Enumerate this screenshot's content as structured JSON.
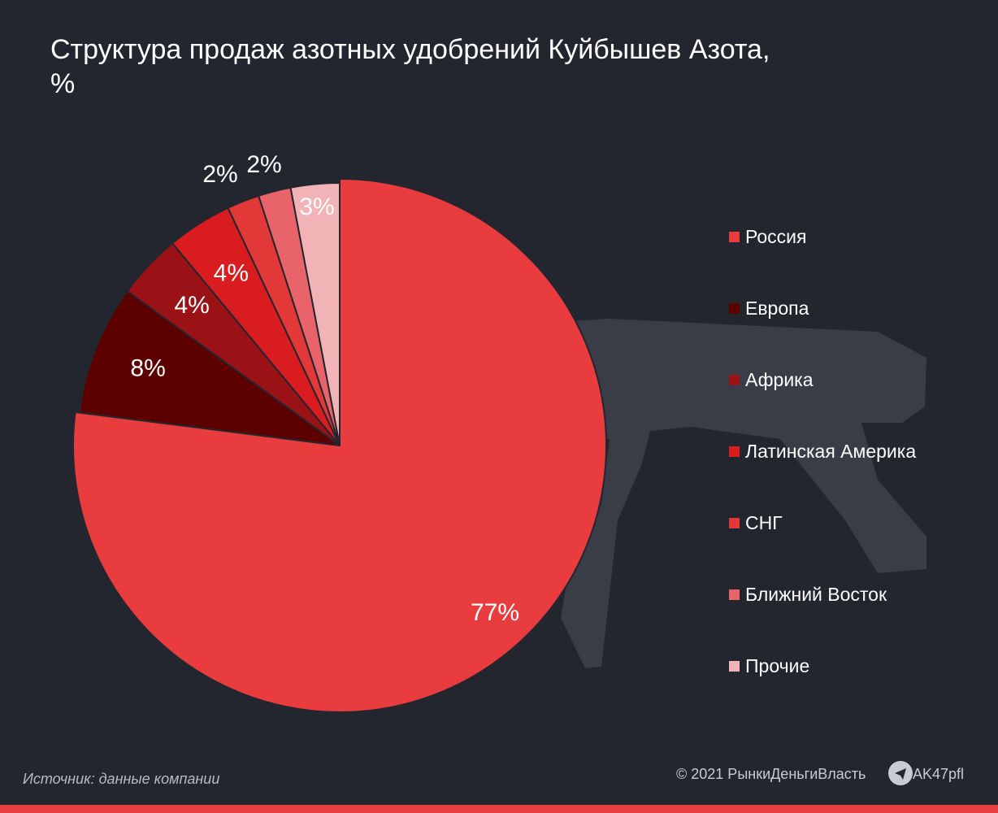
{
  "title": "Структура продаж азотных удобрений Куйбышев Азота, %",
  "chart_data": {
    "type": "pie",
    "title": "Структура продаж азотных удобрений Куйбышев Азота, %",
    "unit": "%",
    "start_angle": "12 o'clock",
    "direction": "clockwise",
    "legend_position": "right",
    "slices": [
      {
        "label": "Россия",
        "value": 77,
        "value_label": "77%",
        "color": "#e83c3e"
      },
      {
        "label": "Европа",
        "value": 8,
        "value_label": "8%",
        "color": "#5c0000"
      },
      {
        "label": "Африка",
        "value": 4,
        "value_label": "4%",
        "color": "#9a1216"
      },
      {
        "label": "Латинская Америка",
        "value": 4,
        "value_label": "4%",
        "color": "#d81c1f"
      },
      {
        "label": "СНГ",
        "value": 2,
        "value_label": "2%",
        "color": "#e23838"
      },
      {
        "label": "Ближний Восток",
        "value": 2,
        "value_label": "2%",
        "color": "#e8646a"
      },
      {
        "label": "Прочие",
        "value": 3,
        "value_label": "3%",
        "color": "#f2b3b7"
      }
    ]
  },
  "footer": {
    "source": "Источник: данные компании",
    "copyright": "© 2021  РынкиДеньгиВласть",
    "handle": "AK47pfl",
    "icon": "telegram-icon"
  },
  "colors": {
    "background": "#23262f",
    "accent": "#e84040",
    "watermark": "#3a3d47"
  }
}
